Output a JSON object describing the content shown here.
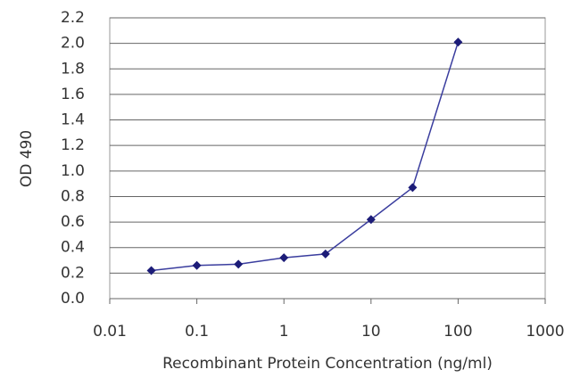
{
  "chart_data": {
    "type": "line",
    "xlabel": "Recombinant Protein Concentration (ng/ml)",
    "ylabel": "OD 490",
    "xscale": "log",
    "x": [
      0.03,
      0.1,
      0.3,
      1,
      3,
      10,
      30,
      100
    ],
    "series": [
      {
        "color": "#3a3d9e",
        "values": [
          0.22,
          0.26,
          0.27,
          0.32,
          0.35,
          0.62,
          0.87,
          2.01
        ]
      }
    ],
    "xlim": [
      0.01,
      1000
    ],
    "xticks": [
      0.01,
      0.1,
      1,
      10,
      100,
      1000
    ],
    "ylim": [
      0,
      2.2
    ],
    "yticks": [
      {
        "value": 0,
        "label": "0.0"
      },
      {
        "value": 0.2,
        "label": "0.2"
      },
      {
        "value": 0.4,
        "label": "0.4"
      },
      {
        "value": 0.6,
        "label": "0.6"
      },
      {
        "value": 0.8,
        "label": "0.8"
      },
      {
        "value": 1,
        "label": "1.0"
      },
      {
        "value": 1.2,
        "label": "1.2"
      },
      {
        "value": 1.4,
        "label": "1.4"
      },
      {
        "value": 1.6,
        "label": "1.6"
      },
      {
        "value": 1.8,
        "label": "1.8"
      },
      {
        "value": 2,
        "label": "2.0"
      },
      {
        "value": 2.2,
        "label": "2.2"
      }
    ],
    "grid": true
  }
}
